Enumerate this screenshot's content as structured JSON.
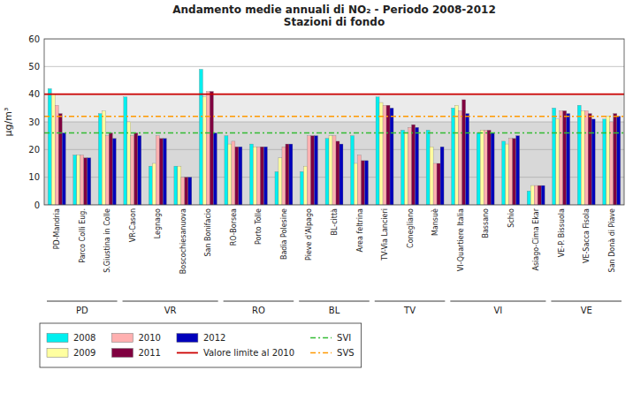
{
  "chart_data": {
    "type": "bar",
    "title": "Andamento medie annuali di NO₂ - Periodo 2008-2012\nStazioni di fondo",
    "y_label": "μg/m³",
    "categories": [
      "PD-Mandria",
      "Parco Colli Eug.",
      "S.Giustina in Colle",
      "VR-Cason",
      "Legnago",
      "Boscochiesanuova",
      "San Bonifacio",
      "RO-Borsea",
      "Porto Tolle",
      "Badia Polesine",
      "Pieve d'Alpago",
      "BL-città",
      "Area feltrina",
      "TV-Via Lancieri",
      "Conegliano",
      "Mansuè",
      "VI-Quartiere Italia",
      "Bassano",
      "Schio",
      "Asiago-Cima Ekar",
      "VE-P. Bissuola",
      "VE-Sacca Fisola",
      "San Donà di Piave"
    ],
    "series": [
      {
        "name": "2008",
        "color": "#00EFEF",
        "values": [
          42,
          18,
          33,
          39,
          14,
          14,
          49,
          25,
          22,
          12,
          12,
          24,
          25,
          39,
          27,
          27,
          35,
          26,
          23,
          5,
          35,
          36,
          31
        ]
      },
      {
        "name": "2009",
        "color": "#FFFFA0",
        "values": [
          40,
          18,
          34,
          30,
          15,
          14,
          39,
          22,
          21,
          17,
          14,
          25,
          15,
          37,
          26,
          21,
          36,
          27,
          22,
          7,
          31,
          34,
          32
        ]
      },
      {
        "name": "2010",
        "color": "#FFB0B0",
        "values": [
          36,
          18,
          25,
          25,
          25,
          10,
          41,
          23,
          21,
          21,
          25,
          25,
          18,
          36,
          28,
          15,
          34,
          27,
          24,
          7,
          34,
          34,
          30
        ]
      },
      {
        "name": "2011",
        "color": "#800040",
        "values": [
          33,
          17,
          26,
          26,
          24,
          10,
          41,
          21,
          21,
          22,
          25,
          23,
          16,
          36,
          29,
          15,
          38,
          27,
          24,
          7,
          34,
          33,
          33
        ]
      },
      {
        "name": "2012",
        "color": "#0000BB",
        "values": [
          26,
          17,
          24,
          25,
          24,
          10,
          26,
          21,
          21,
          22,
          25,
          22,
          16,
          35,
          28,
          21,
          33,
          26,
          25,
          7,
          33,
          31,
          32
        ]
      }
    ],
    "reference_lines": [
      {
        "name": "Valore limite al 2010",
        "value": 40,
        "color": "#CC0000",
        "line_style": "solid"
      },
      {
        "name": "SVI",
        "value": 26,
        "color": "#33BB33",
        "line_style": "dashdot"
      },
      {
        "name": "SVS",
        "value": 32,
        "color": "#FF9900",
        "line_style": "dashdot"
      }
    ],
    "bands": [
      {
        "from": 40,
        "to": 60,
        "color": "#FFFFFF"
      },
      {
        "from": 30,
        "to": 40,
        "color": "#EBEBEB"
      },
      {
        "from": 0,
        "to": 30,
        "color": "#D8D8D8"
      }
    ],
    "groups": [
      {
        "name": "PD",
        "from": "PD-Mandria",
        "to": "S.Giustina in Colle"
      },
      {
        "name": "VR",
        "from": "VR-Cason",
        "to": "San Bonifacio"
      },
      {
        "name": "RO",
        "from": "RO-Borsea",
        "to": "Badia Polesine"
      },
      {
        "name": "BL",
        "from": "Pieve d'Alpago",
        "to": "Area feltrina"
      },
      {
        "name": "TV",
        "from": "TV-Via Lancieri",
        "to": "Mansuè"
      },
      {
        "name": "VI",
        "from": "VI-Quartiere Italia",
        "to": "Asiago-Cima Ekar"
      },
      {
        "name": "VE",
        "from": "VE-P. Bissuola",
        "to": "San Donà di Piave"
      }
    ],
    "ylim": [
      0,
      60
    ],
    "yticks": [
      0,
      10,
      20,
      30,
      40,
      50,
      60
    ],
    "grid": true,
    "legend": "bottom"
  }
}
